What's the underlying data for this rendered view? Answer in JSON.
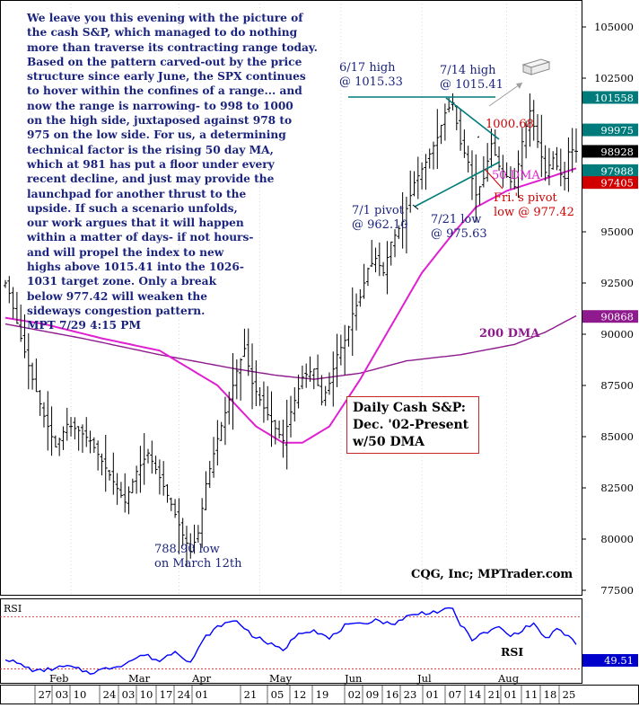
{
  "commentary": "We leave you this evening with the picture of\nthe cash S&P, which managed to do nothing\nmore than traverse its contracting range today.\nBased on the pattern carved-out by the price\nstructure since early June, the SPX continues\nto hover within the confines of a range... and\nnow the range is narrowing- to 998 to 1000\non the high side, juxtaposed against 978 to\n975 on the low side. For us, a determining\ntechnical factor is the rising 50 day MA,\nwhich at 981 has put a floor under every\nrecent decline, and just may provide the\nlaunchpad for another thrust to the\nupside. If such a scenario unfolds,\nour work argues that it will happen\nwithin a matter of days- if not hours-\nand will propel the index to new\nhighs above 1015.41 into the 1026-\n1031 target zone. Only a break\nbelow 977.42 will weaken the\nsideways congestion pattern.\nMPT  7/29  4:15 PM",
  "chart_title": [
    "Daily Cash S&P:",
    "Dec. '02-Present",
    "w/50 DMA"
  ],
  "source_label": "CQG, Inc; MPTrader.com",
  "annotations": {
    "high_617": [
      "6/17 high",
      "@ 1015.33"
    ],
    "high_714": [
      "7/14 high",
      "@ 1015.41"
    ],
    "level_100068": "1000.68",
    "dma50_label": "50 DMA",
    "fri_pivot": [
      "Fri.'s pivot",
      "low @ 977.42"
    ],
    "pivot_71": [
      "7/1 pivot",
      "@ 962.10"
    ],
    "low_721": [
      "7/21 low",
      "@ 975.63"
    ],
    "dma200_label": "200 DMA",
    "low_0312": [
      "788.90 low",
      "on March 12th"
    ]
  },
  "colors": {
    "price": "#000000",
    "ma50": "#e020d0",
    "ma200": "#8e1a8e",
    "rsi": "#0000ff",
    "annotation_blue": "#1a237e",
    "annotation_red": "#d00000",
    "teal": "#007b7b",
    "grid": "#bdbdbd"
  },
  "chart_data": [
    {
      "type": "ohlc",
      "title": "Daily Cash S&P: Dec. '02-Present w/50 DMA",
      "y_ticks": [
        77500,
        80000,
        82500,
        85000,
        87500,
        90000,
        92500,
        95000,
        97500,
        100000,
        102500,
        105000
      ],
      "y_tick_labels": [
        "77500",
        "80000",
        "82500",
        "85000",
        "87500",
        "90000",
        "92500",
        "95000",
        "97500",
        "100000",
        "102500",
        "105000"
      ],
      "ylim": [
        77500,
        106500
      ],
      "price_tags": [
        {
          "label": "101558",
          "value": 101558,
          "bg": "#007b7b",
          "fg": "#ffffff"
        },
        {
          "label": "99975",
          "value": 99975,
          "bg": "#007b7b",
          "fg": "#ffffff"
        },
        {
          "label": "98928",
          "value": 98928,
          "bg": "#000000",
          "fg": "#ffffff"
        },
        {
          "label": "97988",
          "value": 97988,
          "bg": "#007b7b",
          "fg": "#ffffff"
        },
        {
          "label": "97405",
          "value": 97405,
          "bg": "#d00000",
          "fg": "#ffffff"
        },
        {
          "label": "90868",
          "value": 90868,
          "bg": "#8e1a8e",
          "fg": "#ffffff"
        }
      ],
      "close_anchors": [
        [
          0,
          92500
        ],
        [
          1,
          92000
        ],
        [
          4,
          89800
        ],
        [
          7,
          87800
        ],
        [
          10,
          86000
        ],
        [
          13,
          84500
        ],
        [
          16,
          85600
        ],
        [
          19,
          85300
        ],
        [
          22,
          84800
        ],
        [
          25,
          83800
        ],
        [
          28,
          82800
        ],
        [
          31,
          81800
        ],
        [
          34,
          83300
        ],
        [
          37,
          84200
        ],
        [
          40,
          83000
        ],
        [
          43,
          81700
        ],
        [
          46,
          80200
        ],
        [
          48,
          79400
        ],
        [
          50,
          80300
        ],
        [
          52,
          82700
        ],
        [
          55,
          84900
        ],
        [
          58,
          86800
        ],
        [
          60,
          88200
        ],
        [
          62,
          89300
        ],
        [
          64,
          87600
        ],
        [
          67,
          86400
        ],
        [
          70,
          85400
        ],
        [
          72,
          84800
        ],
        [
          74,
          86200
        ],
        [
          77,
          87900
        ],
        [
          80,
          88300
        ],
        [
          82,
          86700
        ],
        [
          84,
          87600
        ],
        [
          86,
          89000
        ],
        [
          88,
          89700
        ],
        [
          90,
          91000
        ],
        [
          92,
          91800
        ],
        [
          94,
          93200
        ],
        [
          96,
          93700
        ],
        [
          98,
          93000
        ],
        [
          100,
          94500
        ],
        [
          103,
          95500
        ],
        [
          106,
          97400
        ],
        [
          109,
          98400
        ],
        [
          112,
          99600
        ],
        [
          114,
          100800
        ],
        [
          116,
          101300
        ],
        [
          118,
          99300
        ],
        [
          120,
          98400
        ],
        [
          122,
          96800
        ],
        [
          124,
          97600
        ],
        [
          126,
          99300
        ],
        [
          128,
          98200
        ],
        [
          130,
          97700
        ],
        [
          132,
          97200
        ],
        [
          134,
          99400
        ],
        [
          136,
          100900
        ],
        [
          138,
          99400
        ],
        [
          140,
          97900
        ],
        [
          142,
          98600
        ],
        [
          144,
          97800
        ],
        [
          145,
          97600
        ],
        [
          146,
          98900
        ],
        [
          147,
          99000
        ],
        [
          148,
          98928
        ]
      ],
      "ma50_anchors": [
        [
          0,
          90800
        ],
        [
          10,
          90500
        ],
        [
          25,
          89800
        ],
        [
          40,
          89200
        ],
        [
          55,
          87500
        ],
        [
          65,
          85500
        ],
        [
          72,
          84700
        ],
        [
          77,
          84700
        ],
        [
          84,
          85500
        ],
        [
          92,
          87800
        ],
        [
          100,
          90400
        ],
        [
          108,
          93000
        ],
        [
          116,
          94900
        ],
        [
          122,
          96200
        ],
        [
          130,
          97000
        ],
        [
          140,
          97600
        ],
        [
          148,
          98100
        ]
      ],
      "ma200_anchors": [
        [
          0,
          90500
        ],
        [
          20,
          89800
        ],
        [
          40,
          89000
        ],
        [
          60,
          88300
        ],
        [
          70,
          88000
        ],
        [
          80,
          87800
        ],
        [
          92,
          88100
        ],
        [
          104,
          88700
        ],
        [
          118,
          89000
        ],
        [
          132,
          89500
        ],
        [
          140,
          90100
        ],
        [
          148,
          90900
        ]
      ],
      "x_ticks_days": [
        "27",
        "03",
        "10",
        "24",
        "03",
        "10",
        "17",
        "24",
        "01",
        "21",
        "05",
        "12",
        "19",
        "02",
        "09",
        "16",
        "23",
        "01",
        "07",
        "14",
        "21",
        "01",
        "11",
        "18",
        "25"
      ],
      "x_ticks_months": [
        "Feb",
        "Mar",
        "Apr",
        "May",
        "Jun",
        "Jul",
        "Aug"
      ]
    },
    {
      "type": "line",
      "title": "RSI",
      "series_label": "RSI",
      "value_tag": "49.51",
      "ylim": [
        22,
        80
      ],
      "anchors": [
        [
          0,
          38
        ],
        [
          8,
          28
        ],
        [
          16,
          32
        ],
        [
          22,
          27
        ],
        [
          30,
          33
        ],
        [
          36,
          41
        ],
        [
          40,
          36
        ],
        [
          44,
          44
        ],
        [
          48,
          35
        ],
        [
          52,
          55
        ],
        [
          56,
          64
        ],
        [
          60,
          67
        ],
        [
          64,
          56
        ],
        [
          68,
          50
        ],
        [
          72,
          44
        ],
        [
          76,
          58
        ],
        [
          80,
          60
        ],
        [
          84,
          53
        ],
        [
          88,
          63
        ],
        [
          92,
          64
        ],
        [
          96,
          68
        ],
        [
          100,
          64
        ],
        [
          104,
          70
        ],
        [
          108,
          73
        ],
        [
          112,
          74
        ],
        [
          116,
          76
        ],
        [
          118,
          64
        ],
        [
          121,
          53
        ],
        [
          124,
          57
        ],
        [
          128,
          62
        ],
        [
          131,
          55
        ],
        [
          134,
          60
        ],
        [
          137,
          65
        ],
        [
          140,
          53
        ],
        [
          143,
          60
        ],
        [
          146,
          55
        ],
        [
          148,
          49.5
        ]
      ]
    }
  ]
}
